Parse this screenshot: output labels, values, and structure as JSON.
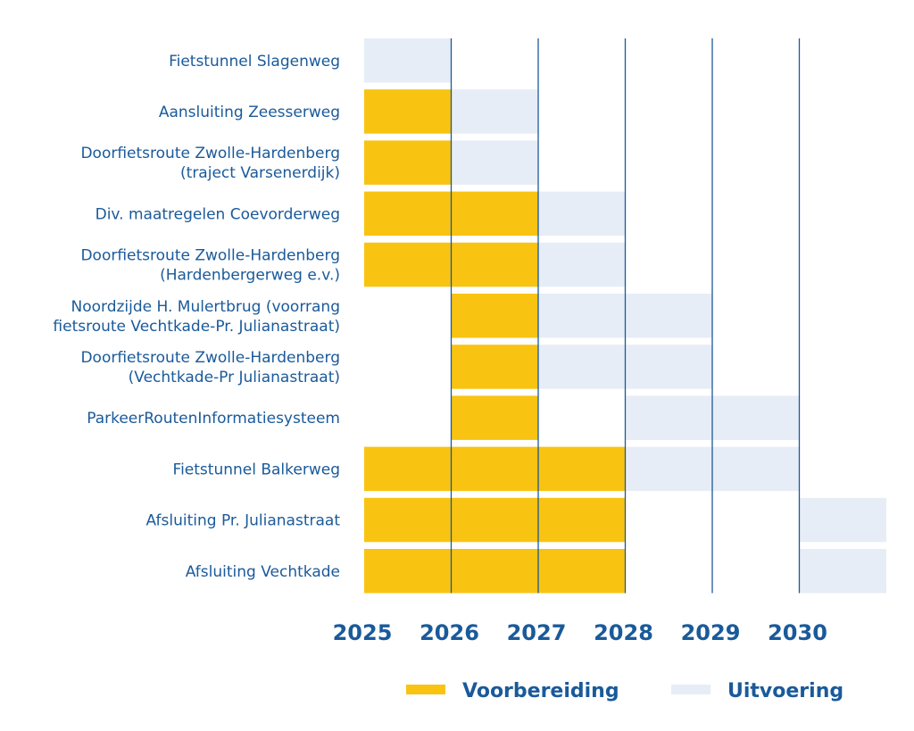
{
  "chart_data": {
    "type": "gantt",
    "x_axis": {
      "ticks": [
        2025,
        2026,
        2027,
        2028,
        2029,
        2030
      ],
      "range": [
        2025,
        2031
      ]
    },
    "colors": {
      "voorbereiding": "#f9c312",
      "uitvoering": "#e7edf6",
      "gridline": "#1a5a9a",
      "text": "#1a5a9a"
    },
    "legend": [
      {
        "key": "voorbereiding",
        "label": "Voorbereiding"
      },
      {
        "key": "uitvoering",
        "label": "Uitvoering"
      }
    ],
    "tasks": [
      {
        "label": [
          "Fietstunnel Slagenweg"
        ],
        "voorbereiding": null,
        "uitvoering": [
          2025,
          2026
        ]
      },
      {
        "label": [
          "Aansluiting Zeesserweg"
        ],
        "voorbereiding": [
          2025,
          2026
        ],
        "uitvoering": [
          2026,
          2027
        ]
      },
      {
        "label": [
          "Doorfietsroute Zwolle-Hardenberg",
          "(traject Varsenerdijk)"
        ],
        "voorbereiding": [
          2025,
          2026
        ],
        "uitvoering": [
          2026,
          2027
        ]
      },
      {
        "label": [
          "Div. maatregelen Coevorderweg"
        ],
        "voorbereiding": [
          2025,
          2027
        ],
        "uitvoering": [
          2027,
          2028
        ]
      },
      {
        "label": [
          "Doorfietsroute Zwolle-Hardenberg",
          "(Hardenbergerweg e.v.)"
        ],
        "voorbereiding": [
          2025,
          2027
        ],
        "uitvoering": [
          2027,
          2028
        ]
      },
      {
        "label": [
          "Noordzijde H. Mulertbrug (voorrang",
          "fietsroute Vechtkade-Pr. Julianastraat)"
        ],
        "voorbereiding": [
          2026,
          2027
        ],
        "uitvoering": [
          2027,
          2029
        ]
      },
      {
        "label": [
          "Doorfietsroute Zwolle-Hardenberg",
          "(Vechtkade-Pr Julianastraat)"
        ],
        "voorbereiding": [
          2026,
          2027
        ],
        "uitvoering": [
          2027,
          2029
        ]
      },
      {
        "label": [
          "ParkeerRoutenInformatiesysteem"
        ],
        "voorbereiding": [
          2026,
          2027
        ],
        "uitvoering": [
          2028,
          2030
        ]
      },
      {
        "label": [
          "Fietstunnel Balkerweg"
        ],
        "voorbereiding": [
          2025,
          2028
        ],
        "uitvoering": [
          2028,
          2030
        ]
      },
      {
        "label": [
          "Afsluiting Pr. Julianastraat"
        ],
        "voorbereiding": [
          2025,
          2028
        ],
        "uitvoering": [
          2030,
          2031
        ]
      },
      {
        "label": [
          "Afsluiting Vechtkade"
        ],
        "voorbereiding": [
          2025,
          2028
        ],
        "uitvoering": [
          2030,
          2031
        ]
      }
    ]
  }
}
